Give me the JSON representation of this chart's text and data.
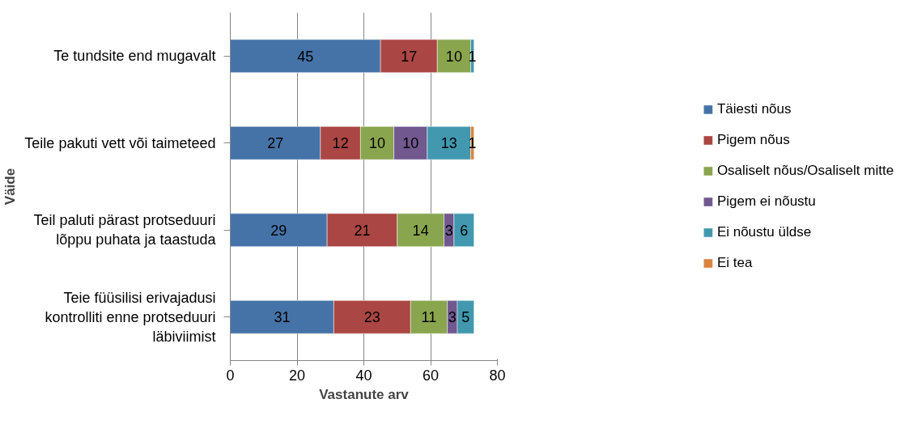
{
  "chart_data": {
    "type": "bar",
    "orientation": "horizontal",
    "stacked": true,
    "data_labels": true,
    "ylabel": "Väide",
    "xlabel": "Vastanute arv",
    "categories": [
      "Te tundsite end mugavalt",
      "Teile pakuti vett või taimeteed",
      "Teil paluti pärast protseduuri lõppu puhata ja taastuda",
      "Teie füüsilisi erivajadusi kontrolliti enne protseduuri läbiviimist"
    ],
    "series": [
      {
        "name": "Täiesti nõus",
        "color": "#4573a7",
        "values": [
          45,
          27,
          29,
          31
        ]
      },
      {
        "name": "Pigem nõus",
        "color": "#aa4643",
        "values": [
          17,
          12,
          21,
          23
        ]
      },
      {
        "name": "Osaliselt nõus/Osaliselt mitte",
        "color": "#89a54e",
        "values": [
          10,
          10,
          14,
          11
        ]
      },
      {
        "name": "Pigem ei nõustu",
        "color": "#71588f",
        "values": [
          null,
          10,
          3,
          3
        ]
      },
      {
        "name": "Ei nõustu üldse",
        "color": "#4198af",
        "values": [
          1,
          13,
          6,
          5
        ]
      },
      {
        "name": "Ei tea",
        "color": "#db843d",
        "values": [
          null,
          1,
          null,
          null
        ]
      }
    ],
    "xlim": [
      0,
      80
    ],
    "xticks": [
      0,
      20,
      40,
      60,
      80
    ],
    "grid": "x",
    "legend": "right"
  }
}
